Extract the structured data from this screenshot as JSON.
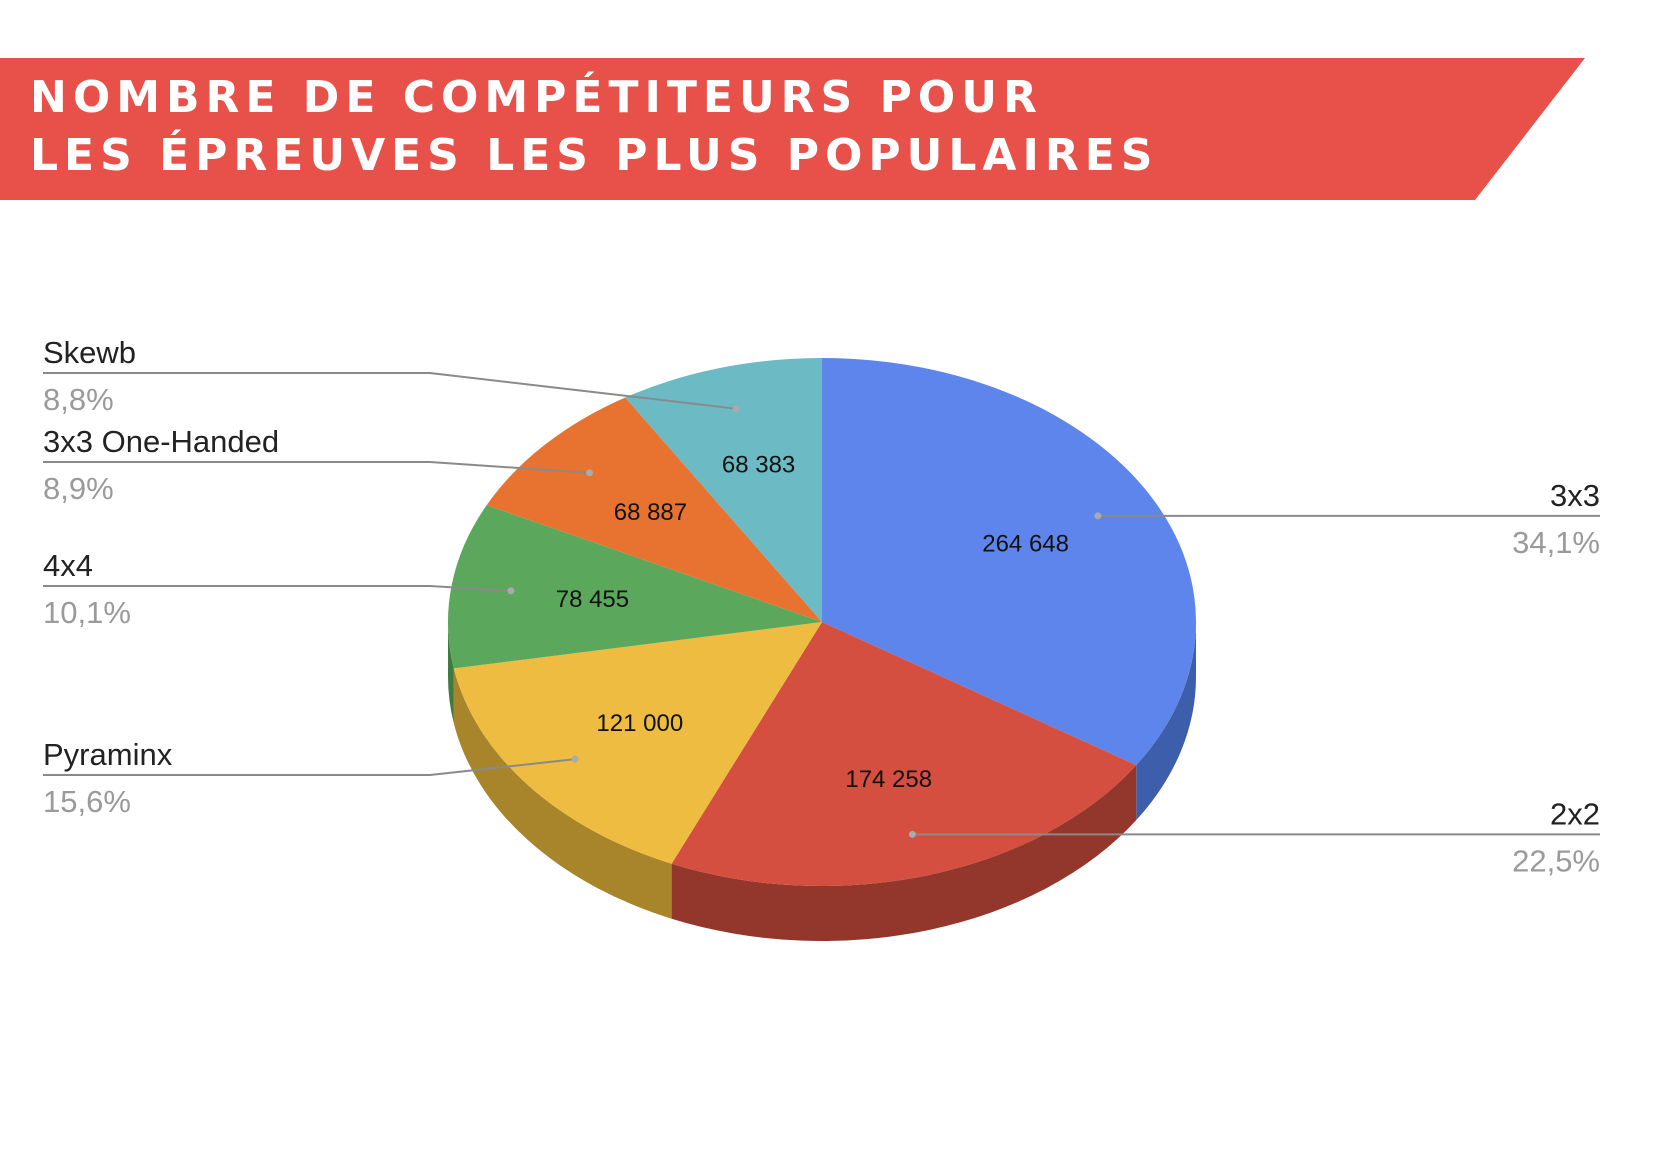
{
  "title": {
    "line1": "NOMBRE DE COMPÉTITEURS POUR",
    "line2": "LES ÉPREUVES LES PLUS POPULAIRES"
  },
  "colors": {
    "banner": "#e8504a",
    "title_text": "#ffffff",
    "label_text": "#222222",
    "percent_text": "#9a9a9a",
    "leader_line": "#8a8a8a"
  },
  "chart_data": {
    "type": "pie",
    "style": "3d",
    "categories": [
      "3x3",
      "2x2",
      "Pyraminx",
      "4x4",
      "3x3 One-Handed",
      "Skewb"
    ],
    "values": [
      264648,
      174258,
      121000,
      78455,
      68887,
      68383
    ],
    "value_labels": [
      "264 648",
      "174 258",
      "121 000",
      "78 455",
      "68 887",
      "68 383"
    ],
    "percent_labels": [
      "34,1%",
      "22,5%",
      "15,6%",
      "10,1%",
      "8,9%",
      "8,8%"
    ],
    "colors": [
      "#5e85ec",
      "#d44f3f",
      "#efbc42",
      "#5ba85c",
      "#e87330",
      "#6cbac4"
    ],
    "side_colors": [
      "#3d5eab",
      "#93362c",
      "#a8852b",
      "#3f7a40",
      "#a85222",
      "#4d8a92"
    ],
    "start_angle": "top",
    "direction": "clockwise",
    "legend": "labels with leader lines (left and right)"
  }
}
